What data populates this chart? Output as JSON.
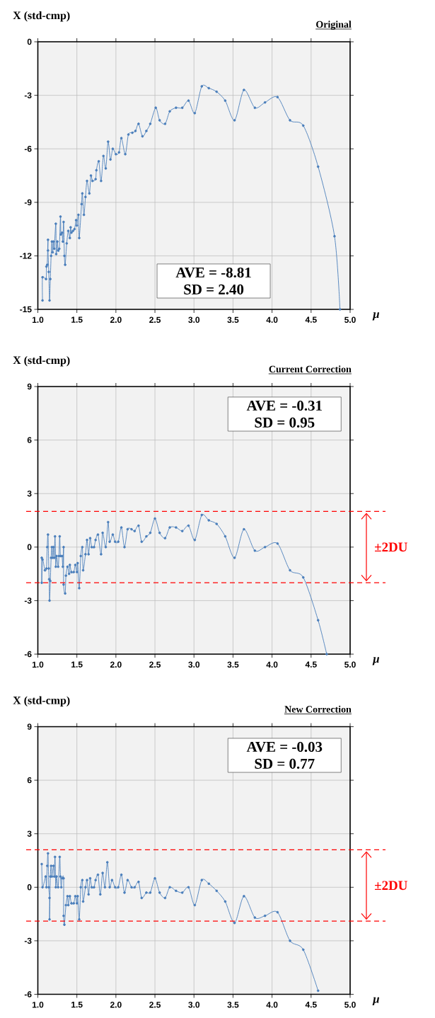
{
  "chart_data": [
    {
      "type": "line",
      "title": "Original",
      "xlabel": "μ",
      "ylabel": "X (std-cmp)",
      "xlim": [
        1,
        5
      ],
      "ylim": [
        -15,
        0
      ],
      "xticks": [
        {
          "value": 1,
          "label": "1.0"
        },
        {
          "value": 1.5,
          "label": "1.5"
        },
        {
          "value": 2,
          "label": "2.0"
        },
        {
          "value": 2.5,
          "label": "2.5"
        },
        {
          "value": 3,
          "label": "3.0"
        },
        {
          "value": 3.5,
          "label": "3.5"
        },
        {
          "value": 4,
          "label": "4.0"
        },
        {
          "value": 4.5,
          "label": "4.5"
        },
        {
          "value": 5,
          "label": "5.0"
        }
      ],
      "yticks": [
        0,
        -3,
        -6,
        -9,
        -12,
        -15
      ],
      "grid": true,
      "marker": "circle",
      "annotations": [
        "AVE = -8.81",
        "SD = 2.40"
      ],
      "series": [
        {
          "color": "#4a7ebb",
          "x": [
            1.06,
            1.06,
            1.105,
            1.11,
            1.12,
            1.13,
            1.13,
            1.14,
            1.15,
            1.16,
            1.17,
            1.18,
            1.19,
            1.2,
            1.21,
            1.23,
            1.235,
            1.25,
            1.26,
            1.275,
            1.29,
            1.295,
            1.31,
            1.32,
            1.33,
            1.34,
            1.35,
            1.37,
            1.39,
            1.41,
            1.42,
            1.43,
            1.45,
            1.47,
            1.49,
            1.5,
            1.52,
            1.53,
            1.56,
            1.57,
            1.59,
            1.61,
            1.63,
            1.66,
            1.68,
            1.7,
            1.74,
            1.75,
            1.78,
            1.81,
            1.84,
            1.87,
            1.9,
            1.93,
            1.96,
            2.0,
            2.04,
            2.07,
            2.12,
            2.16,
            2.21,
            2.25,
            2.29,
            2.34,
            2.39,
            2.44,
            2.51,
            2.56,
            2.63,
            2.69,
            2.77,
            2.85,
            2.93,
            3.01,
            3.1,
            3.19,
            3.29,
            3.4,
            3.52,
            3.64,
            3.78,
            3.91,
            4.07,
            4.23,
            4.4,
            4.59,
            4.8,
            4.87
          ],
          "values": [
            -14.5,
            -13.2,
            -13.3,
            -12.6,
            -12.5,
            -11.1,
            -11.7,
            -12.9,
            -14.5,
            -13.3,
            -12.0,
            -11.2,
            -11.8,
            -11.2,
            -11.6,
            -10.2,
            -11.9,
            -11.2,
            -11.7,
            -11.6,
            -9.8,
            -10.8,
            -10.7,
            -11.2,
            -10.1,
            -12.0,
            -12.5,
            -11.3,
            -10.6,
            -11.0,
            -10.4,
            -10.7,
            -10.6,
            -10.5,
            -10.0,
            -10.3,
            -9.7,
            -11.0,
            -9.1,
            -8.5,
            -9.7,
            -8.7,
            -7.8,
            -8.5,
            -7.5,
            -7.8,
            -7.7,
            -7.2,
            -6.7,
            -7.8,
            -6.4,
            -7.1,
            -5.6,
            -6.6,
            -6.0,
            -6.3,
            -6.2,
            -5.4,
            -6.3,
            -5.2,
            -5.1,
            -5.0,
            -4.6,
            -5.3,
            -5.0,
            -4.6,
            -3.7,
            -4.4,
            -4.6,
            -3.9,
            -3.7,
            -3.7,
            -3.3,
            -4.0,
            -2.5,
            -2.6,
            -2.8,
            -3.3,
            -4.4,
            -2.7,
            -3.7,
            -3.4,
            -3.1,
            -4.4,
            -4.7,
            -7.0,
            -10.9,
            -15
          ]
        }
      ]
    },
    {
      "type": "line",
      "title": "Current Correction",
      "xlabel": "μ",
      "ylabel": "X (std-cmp)",
      "xlim": [
        1,
        5
      ],
      "ylim": [
        -6,
        9
      ],
      "xticks": [
        {
          "value": 1,
          "label": "1.0"
        },
        {
          "value": 1.5,
          "label": "1.5"
        },
        {
          "value": 2,
          "label": "2.0"
        },
        {
          "value": 2.5,
          "label": "2.5"
        },
        {
          "value": 3,
          "label": "3.0"
        },
        {
          "value": 3.5,
          "label": "3.5"
        },
        {
          "value": 4,
          "label": "4.0"
        },
        {
          "value": 4.5,
          "label": "4.5"
        },
        {
          "value": 5,
          "label": "5.0"
        }
      ],
      "yticks": [
        -6,
        -3,
        0,
        3,
        6,
        9
      ],
      "grid": true,
      "marker": "circle",
      "annotations": [
        "AVE = -0.31",
        "SD = 0.95",
        "±2DU"
      ],
      "ref_lines": [
        {
          "axis": "y",
          "value": 2,
          "color": "#ff0000",
          "line_style": "dashed"
        },
        {
          "axis": "y",
          "value": -2,
          "color": "#ff0000",
          "line_style": "dashed"
        }
      ],
      "series": [
        {
          "color": "#4a7ebb",
          "x": [
            1.05,
            1.05,
            1.06,
            1.09,
            1.11,
            1.12,
            1.13,
            1.14,
            1.145,
            1.15,
            1.16,
            1.17,
            1.18,
            1.19,
            1.2,
            1.21,
            1.22,
            1.23,
            1.24,
            1.26,
            1.27,
            1.28,
            1.29,
            1.31,
            1.32,
            1.33,
            1.33,
            1.35,
            1.36,
            1.38,
            1.4,
            1.41,
            1.43,
            1.46,
            1.48,
            1.5,
            1.51,
            1.53,
            1.55,
            1.57,
            1.58,
            1.61,
            1.63,
            1.65,
            1.67,
            1.69,
            1.72,
            1.74,
            1.77,
            1.81,
            1.83,
            1.87,
            1.9,
            1.92,
            1.96,
            1.99,
            2.03,
            2.07,
            2.11,
            2.15,
            2.2,
            2.24,
            2.29,
            2.33,
            2.39,
            2.44,
            2.5,
            2.56,
            2.63,
            2.69,
            2.77,
            2.85,
            2.93,
            3.01,
            3.1,
            3.19,
            3.29,
            3.4,
            3.52,
            3.64,
            3.78,
            3.91,
            4.07,
            4.23,
            4.4,
            4.59,
            4.7
          ],
          "values": [
            -0.6,
            -2.0,
            -0.7,
            -1.3,
            -1.2,
            0,
            0.7,
            -1.2,
            -1.8,
            -3.0,
            -1.9,
            -0.6,
            0,
            -0.6,
            0,
            -0.6,
            0.6,
            -1.1,
            -0.5,
            -1.1,
            -0.5,
            0.6,
            -0.5,
            -0.5,
            -1.1,
            0,
            -2.1,
            -2.6,
            -1.6,
            -1.1,
            -1.5,
            -1.0,
            -1.4,
            -1.4,
            -1.0,
            -1.4,
            -0.9,
            -2.3,
            -0.5,
            0,
            -1.3,
            -0.4,
            0.4,
            -0.4,
            0.5,
            0,
            0,
            0.4,
            0.7,
            -0.4,
            0.8,
            0,
            1.4,
            0.3,
            0.7,
            0.3,
            0.3,
            1.1,
            0,
            1.0,
            1.0,
            0.9,
            1.2,
            0.3,
            0.6,
            0.8,
            1.6,
            0.8,
            0.5,
            1.1,
            1.1,
            0.9,
            1.2,
            0.4,
            1.8,
            1.5,
            1.3,
            0.6,
            -0.6,
            1.0,
            -0.2,
            0,
            0.2,
            -1.3,
            -1.7,
            -4.1,
            -6.0
          ]
        }
      ]
    },
    {
      "type": "line",
      "title": "New Correction",
      "xlabel": "μ",
      "ylabel": "X (std-cmp)",
      "xlim": [
        1,
        5
      ],
      "ylim": [
        -6,
        9
      ],
      "xticks": [
        {
          "value": 1,
          "label": "1.0"
        },
        {
          "value": 1.5,
          "label": "1.5"
        },
        {
          "value": 2,
          "label": "2.0"
        },
        {
          "value": 2.5,
          "label": "2.5"
        },
        {
          "value": 3,
          "label": "3.0"
        },
        {
          "value": 3.5,
          "label": "3.5"
        },
        {
          "value": 4,
          "label": "4.0"
        },
        {
          "value": 4.5,
          "label": "4.5"
        },
        {
          "value": 5,
          "label": "5.0"
        }
      ],
      "yticks": [
        -6,
        -3,
        0,
        3,
        6,
        9
      ],
      "grid": true,
      "marker": "circle",
      "annotations": [
        "AVE = -0.03",
        "SD = 0.77",
        "±2DU"
      ],
      "ref_lines": [
        {
          "axis": "y",
          "value": 2.1,
          "color": "#ff0000",
          "line_style": "dashed"
        },
        {
          "axis": "y",
          "value": -1.9,
          "color": "#ff0000",
          "line_style": "dashed"
        }
      ],
      "series": [
        {
          "color": "#4a7ebb",
          "x": [
            1.05,
            1.06,
            1.1,
            1.11,
            1.12,
            1.13,
            1.14,
            1.15,
            1.15,
            1.16,
            1.17,
            1.18,
            1.2,
            1.21,
            1.22,
            1.23,
            1.24,
            1.26,
            1.28,
            1.29,
            1.3,
            1.31,
            1.33,
            1.33,
            1.34,
            1.36,
            1.38,
            1.39,
            1.41,
            1.43,
            1.46,
            1.48,
            1.5,
            1.51,
            1.53,
            1.55,
            1.57,
            1.58,
            1.61,
            1.63,
            1.65,
            1.67,
            1.69,
            1.72,
            1.74,
            1.77,
            1.8,
            1.83,
            1.86,
            1.89,
            1.92,
            1.95,
            1.99,
            2.03,
            2.07,
            2.11,
            2.15,
            2.2,
            2.24,
            2.29,
            2.33,
            2.39,
            2.44,
            2.5,
            2.56,
            2.63,
            2.69,
            2.77,
            2.85,
            2.93,
            3.01,
            3.1,
            3.19,
            3.29,
            3.4,
            3.52,
            3.64,
            3.78,
            3.91,
            4.07,
            4.23,
            4.4,
            4.59
          ],
          "values": [
            1.3,
            0,
            0.6,
            0,
            1.2,
            1.9,
            0,
            -0.6,
            -1.8,
            0.6,
            1.2,
            0.6,
            1.2,
            0.6,
            1.7,
            0,
            0.6,
            0,
            1.7,
            0.6,
            0,
            0.5,
            0.5,
            -1.6,
            -2.1,
            -1.0,
            -0.5,
            -1.0,
            -0.5,
            -0.9,
            -0.9,
            -0.5,
            -0.9,
            -0.5,
            -1.8,
            0,
            0.4,
            -0.8,
            0,
            0.4,
            -0.4,
            0.5,
            0,
            0,
            0.4,
            0.7,
            -0.4,
            0.8,
            0,
            1.4,
            0,
            0.4,
            0,
            0,
            0.7,
            -0.3,
            0.4,
            0,
            0,
            0.3,
            -0.6,
            -0.3,
            -0.3,
            0.5,
            -0.3,
            -0.6,
            0,
            -0.2,
            -0.3,
            0,
            -1.0,
            0.4,
            0.2,
            -0.2,
            -0.8,
            -2.0,
            -0.5,
            -1.7,
            -1.6,
            -1.4,
            -3.0,
            -3.5,
            -5.8
          ]
        }
      ]
    }
  ]
}
